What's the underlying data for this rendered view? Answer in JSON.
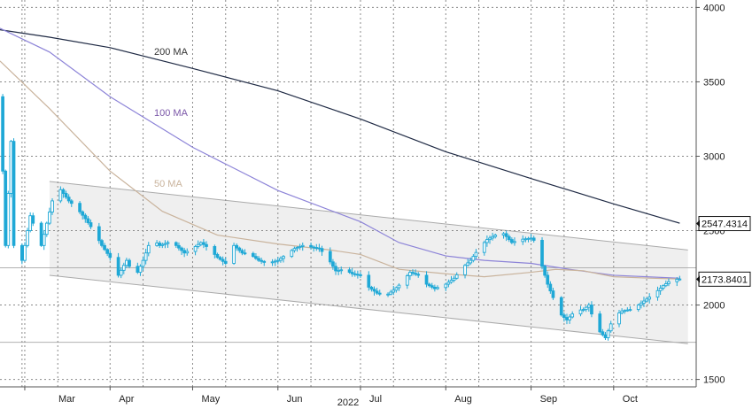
{
  "chart_data": {
    "type": "candlestick",
    "year_label": "2022",
    "x_ticks": [
      "Mar",
      "Apr",
      "May",
      "Jun",
      "Jul",
      "Aug",
      "Sep",
      "Oct"
    ],
    "y_ticks": [
      1500,
      2000,
      2500,
      3000,
      3500,
      4000
    ],
    "ylim": [
      1450,
      4050
    ],
    "grid": true,
    "y_axis_side": "right",
    "last_value_labels": [
      {
        "value": "2547.4314",
        "of": "200 MA"
      },
      {
        "value": "2173.8401",
        "of": "price"
      }
    ],
    "moving_averages": [
      {
        "name": "200 MA",
        "color": "#1f2a44",
        "points": [
          [
            "Feb 20",
            3850
          ],
          [
            "Mar 10",
            3800
          ],
          [
            "Apr 1",
            3730
          ],
          [
            "May 1",
            3590
          ],
          [
            "Jun 1",
            3440
          ],
          [
            "Jul 1",
            3250
          ],
          [
            "Aug 1",
            3030
          ],
          [
            "Sep 1",
            2850
          ],
          [
            "Oct 1",
            2680
          ],
          [
            "Oct 25",
            2550
          ]
        ]
      },
      {
        "name": "100 MA",
        "color": "#8d84d8",
        "points": [
          [
            "Feb 20",
            3860
          ],
          [
            "Mar 10",
            3700
          ],
          [
            "Apr 1",
            3400
          ],
          [
            "May 1",
            3060
          ],
          [
            "Jun 1",
            2770
          ],
          [
            "Jul 1",
            2560
          ],
          [
            "Jul 15",
            2420
          ],
          [
            "Aug 1",
            2330
          ],
          [
            "Aug 15",
            2300
          ],
          [
            "Sep 1",
            2280
          ],
          [
            "Sep 15",
            2240
          ],
          [
            "Oct 1",
            2200
          ],
          [
            "Oct 25",
            2180
          ]
        ]
      },
      {
        "name": "50 MA",
        "color": "#c9b39c",
        "points": [
          [
            "Feb 20",
            3640
          ],
          [
            "Mar 10",
            3320
          ],
          [
            "Apr 1",
            2900
          ],
          [
            "Apr 20",
            2630
          ],
          [
            "May 10",
            2470
          ],
          [
            "Jun 1",
            2410
          ],
          [
            "Jun 20",
            2370
          ],
          [
            "Jul 1",
            2340
          ],
          [
            "Jul 15",
            2240
          ],
          [
            "Aug 1",
            2210
          ],
          [
            "Aug 15",
            2190
          ],
          [
            "Sep 1",
            2220
          ],
          [
            "Sep 10",
            2240
          ],
          [
            "Sep 20",
            2230
          ],
          [
            "Oct 1",
            2190
          ],
          [
            "Oct 15",
            2180
          ],
          [
            "Oct 25",
            2175
          ]
        ]
      }
    ],
    "channel": {
      "upper": [
        [
          "Mar 10",
          2830
        ],
        [
          "Oct 28",
          2370
        ]
      ],
      "lower": [
        [
          "Mar 10",
          2200
        ],
        [
          "Oct 28",
          1740
        ]
      ]
    },
    "price_points": [
      [
        "Feb 20",
        3400
      ],
      [
        "Feb 22",
        2400
      ],
      [
        "Feb 24",
        3100
      ],
      [
        "Feb 26",
        1700
      ],
      [
        "Feb 28",
        2300
      ],
      [
        "Mar 3",
        2600
      ],
      [
        "Mar 7",
        2400
      ],
      [
        "Mar 9",
        2550
      ],
      [
        "Mar 11",
        2700
      ],
      [
        "Mar 13",
        2800
      ],
      [
        "Mar 15",
        2750
      ],
      [
        "Mar 17",
        2700
      ],
      [
        "Mar 20",
        2650
      ],
      [
        "Mar 23",
        2580
      ],
      [
        "Mar 26",
        2500
      ],
      [
        "Mar 29",
        2400
      ],
      [
        "Apr 1",
        2320
      ],
      [
        "Apr 4",
        2200
      ],
      [
        "Apr 7",
        2300
      ],
      [
        "Apr 10",
        2180
      ],
      [
        "Apr 13",
        2300
      ],
      [
        "Apr 16",
        2450
      ],
      [
        "Apr 19",
        2400
      ],
      [
        "Apr 22",
        2420
      ],
      [
        "Apr 25",
        2400
      ],
      [
        "Apr 28",
        2350
      ],
      [
        "May 1",
        2380
      ],
      [
        "May 4",
        2420
      ],
      [
        "May 7",
        2380
      ],
      [
        "May 10",
        2320
      ],
      [
        "May 13",
        2280
      ],
      [
        "May 16",
        2400
      ],
      [
        "May 19",
        2350
      ],
      [
        "May 22",
        2340
      ],
      [
        "May 25",
        2300
      ],
      [
        "May 28",
        2280
      ],
      [
        "Jun 1",
        2300
      ],
      [
        "Jun 4",
        2340
      ],
      [
        "Jun 7",
        2380
      ],
      [
        "Jun 10",
        2400
      ],
      [
        "Jun 13",
        2390
      ],
      [
        "Jun 16",
        2380
      ],
      [
        "Jun 19",
        2320
      ],
      [
        "Jun 22",
        2230
      ],
      [
        "Jun 25",
        2240
      ],
      [
        "Jun 28",
        2210
      ],
      [
        "Jul 1",
        2200
      ],
      [
        "Jul 4",
        2120
      ],
      [
        "Jul 7",
        2080
      ],
      [
        "Jul 10",
        2060
      ],
      [
        "Jul 13",
        2100
      ],
      [
        "Jul 16",
        2150
      ],
      [
        "Jul 19",
        2220
      ],
      [
        "Jul 22",
        2200
      ],
      [
        "Jul 25",
        2140
      ],
      [
        "Jul 28",
        2110
      ],
      [
        "Aug 1",
        2140
      ],
      [
        "Aug 4",
        2180
      ],
      [
        "Aug 7",
        2250
      ],
      [
        "Aug 10",
        2300
      ],
      [
        "Aug 13",
        2380
      ],
      [
        "Aug 16",
        2440
      ],
      [
        "Aug 19",
        2470
      ],
      [
        "Aug 22",
        2480
      ],
      [
        "Aug 25",
        2420
      ],
      [
        "Aug 28",
        2440
      ],
      [
        "Sep 1",
        2450
      ],
      [
        "Sep 3",
        2420
      ],
      [
        "Sep 5",
        2260
      ],
      [
        "Sep 7",
        2140
      ],
      [
        "Sep 9",
        2050
      ],
      [
        "Sep 11",
        1950
      ],
      [
        "Sep 14",
        1900
      ],
      [
        "Sep 17",
        1960
      ],
      [
        "Sep 20",
        1970
      ],
      [
        "Sep 22",
        2000
      ],
      [
        "Sep 24",
        1880
      ],
      [
        "Sep 26",
        1820
      ],
      [
        "Sep 28",
        1780
      ],
      [
        "Oct 1",
        1920
      ],
      [
        "Oct 4",
        1960
      ],
      [
        "Oct 7",
        1970
      ],
      [
        "Oct 10",
        2000
      ],
      [
        "Oct 13",
        2040
      ],
      [
        "Oct 16",
        2080
      ],
      [
        "Oct 19",
        2130
      ],
      [
        "Oct 22",
        2170
      ],
      [
        "Oct 25",
        2175
      ]
    ]
  },
  "ma_labels": {
    "ma200": "200 MA",
    "ma100": "100 MA",
    "ma50": "50 MA"
  },
  "colors": {
    "candle": "#1fa8d6",
    "grid": "#8a8a8a",
    "channel_fill": "#efefef",
    "channel_line": "#aaaaaa",
    "label_box_border": "#111111"
  }
}
